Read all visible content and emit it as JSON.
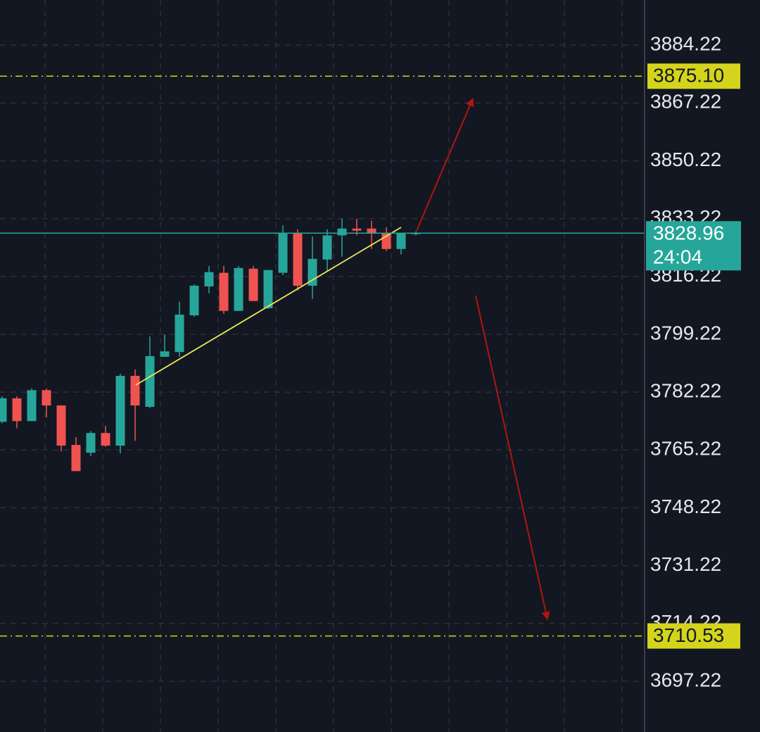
{
  "chart_data": {
    "type": "candlestick",
    "up_color": "#26a69a",
    "down_color": "#ef5350",
    "open": [
      3773.5,
      3780.4,
      3773.7,
      3782.8,
      3778.3,
      3766.7,
      3764.4,
      3770.2,
      3766.5,
      3787.0,
      3777.9,
      3792.6,
      3794.0,
      3804.8,
      3813.3,
      3817.3,
      3806.1,
      3818.5,
      3806.9,
      3817.3,
      3829.1,
      3813.5,
      3821.2,
      3828.3,
      3830.3,
      3830.3,
      3828.9,
      3824.3,
      3828.7
    ],
    "high": [
      3781.0,
      3781.0,
      3783.3,
      3783.3,
      3778.3,
      3769.0,
      3770.8,
      3772.3,
      3787.6,
      3788.9,
      3798.6,
      3799.2,
      3808.8,
      3813.9,
      3819.3,
      3819.3,
      3819.3,
      3819.3,
      3818.1,
      3831.2,
      3830.1,
      3828.0,
      3830.1,
      3833.2,
      3833.2,
      3832.6,
      3830.7,
      3828.9,
      3829.5
    ],
    "low": [
      3773.1,
      3771.6,
      3773.7,
      3774.8,
      3764.8,
      3759.0,
      3763.4,
      3766.1,
      3764.2,
      3767.9,
      3777.5,
      3792.6,
      3792.6,
      3804.4,
      3811.3,
      3805.2,
      3806.1,
      3809.0,
      3806.7,
      3816.6,
      3812.1,
      3809.6,
      3817.7,
      3822.0,
      3828.3,
      3824.3,
      3823.7,
      3822.7,
      3828.3
    ],
    "close": [
      3780.4,
      3773.7,
      3782.8,
      3778.3,
      3766.5,
      3759.0,
      3770.2,
      3766.5,
      3787.0,
      3778.3,
      3792.8,
      3794.2,
      3805.0,
      3813.5,
      3817.5,
      3806.1,
      3818.7,
      3809.0,
      3818.1,
      3829.1,
      3813.5,
      3821.4,
      3828.3,
      3830.3,
      3829.7,
      3828.9,
      3824.3,
      3828.9,
      3828.96
    ],
    "ylim": [
      3682.3,
      3897.5
    ],
    "yticks": [
      3697.22,
      3714.22,
      3731.22,
      3748.22,
      3765.22,
      3782.22,
      3799.22,
      3816.22,
      3833.22,
      3850.22,
      3867.22,
      3884.22
    ],
    "grid": true,
    "price_lines": [
      {
        "value": 3875.1,
        "label": "3875.10",
        "color": "#d4d41c"
      },
      {
        "value": 3710.53,
        "label": "3710.53",
        "color": "#d4d41c"
      }
    ],
    "last_price": {
      "value": 3828.96,
      "countdown": "24:04",
      "color": "#26a69a"
    }
  }
}
